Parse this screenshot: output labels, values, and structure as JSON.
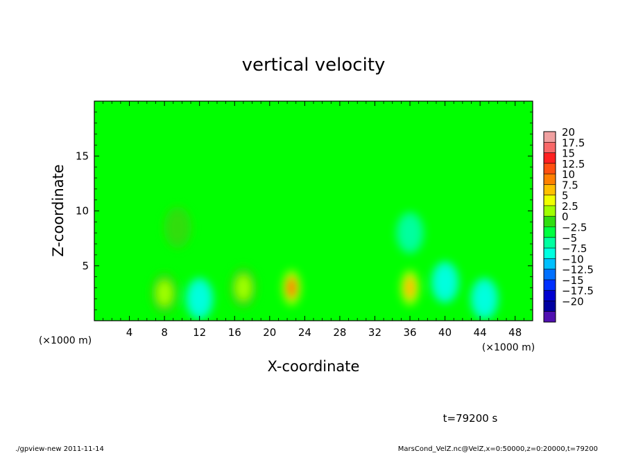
{
  "chart_data": {
    "type": "heatmap",
    "title": "vertical velocity",
    "xlabel": "X-coordinate",
    "ylabel": "Z-coordinate",
    "x_unit": "(×1000 m)",
    "z_unit": "(×1000 m)",
    "xlim": [
      0,
      50
    ],
    "ylim": [
      0,
      20
    ],
    "x_ticks": [
      "4",
      "8",
      "12",
      "16",
      "20",
      "24",
      "28",
      "32",
      "36",
      "40",
      "44",
      "48"
    ],
    "y_ticks": [
      "5",
      "10",
      "15"
    ],
    "colorbar": {
      "levels": [
        "20",
        "17.5",
        "15",
        "12.5",
        "10",
        "7.5",
        "5",
        "2.5",
        "0",
        "-2.5",
        "-5",
        "-7.5",
        "-10",
        "-12.5",
        "-15",
        "-17.5",
        "-20"
      ],
      "colors": [
        "#f0a0a0",
        "#f86868",
        "#ff2020",
        "#ff5010",
        "#ff8000",
        "#ffc000",
        "#f0ff00",
        "#a0ff00",
        "#30dd10",
        "#00ff40",
        "#00ffa0",
        "#00ffe0",
        "#00c0ff",
        "#0070ff",
        "#0030ff",
        "#0000d0",
        "#0000a0",
        "#5010b0"
      ]
    },
    "features": [
      {
        "x": 22.5,
        "z": 3.0,
        "value": 12.5
      },
      {
        "x": 36.0,
        "z": 3.0,
        "value": 10.0
      },
      {
        "x": 8.0,
        "z": 2.5,
        "value": 5.0
      },
      {
        "x": 17.0,
        "z": 3.0,
        "value": 5.0
      },
      {
        "x": 9.5,
        "z": 8.5,
        "value": 2.5
      },
      {
        "x": 12.0,
        "z": 2.0,
        "value": -5.0
      },
      {
        "x": 40.0,
        "z": 3.5,
        "value": -5.0
      },
      {
        "x": 44.5,
        "z": 2.0,
        "value": -5.0
      },
      {
        "x": 36.0,
        "z": 8.0,
        "value": -2.5
      }
    ],
    "time_label": "t=79200 s"
  },
  "footer": {
    "left": "./gpview-new  2011-11-14",
    "right": "MarsCond_VelZ.nc@VelZ,x=0:50000,z=0:20000,t=79200"
  }
}
